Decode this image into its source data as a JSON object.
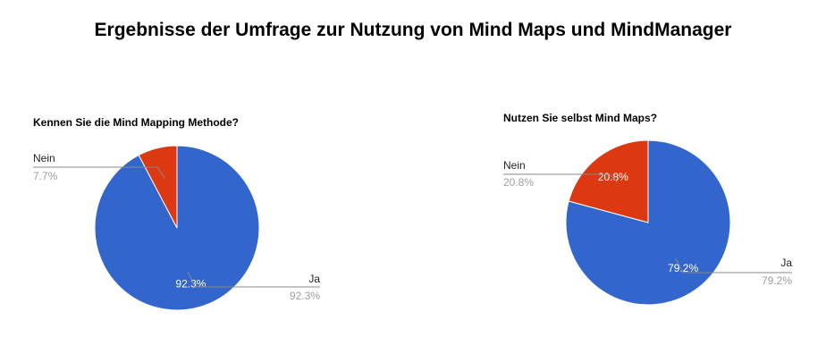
{
  "page_title": "Ergebnisse der Umfrage zur Nutzung von Mind Maps und MindManager",
  "colors": {
    "ja": "#3366cc",
    "nein": "#dc3912",
    "leader_line": "#888888",
    "pct_text": "#9e9e9e"
  },
  "chart_data": [
    {
      "type": "pie",
      "title": "Kennen Sie die Mind Mapping Methode?",
      "slices": [
        {
          "label": "Ja",
          "value": 92.3,
          "display": "92.3%",
          "color": "#3366cc"
        },
        {
          "label": "Nein",
          "value": 7.7,
          "display": "7.7%",
          "color": "#dc3912"
        }
      ]
    },
    {
      "type": "pie",
      "title": "Nutzen Sie selbst Mind Maps?",
      "slices": [
        {
          "label": "Ja",
          "value": 79.2,
          "display": "79.2%",
          "color": "#3366cc"
        },
        {
          "label": "Nein",
          "value": 20.8,
          "display": "20.8%",
          "color": "#dc3912"
        }
      ]
    }
  ]
}
